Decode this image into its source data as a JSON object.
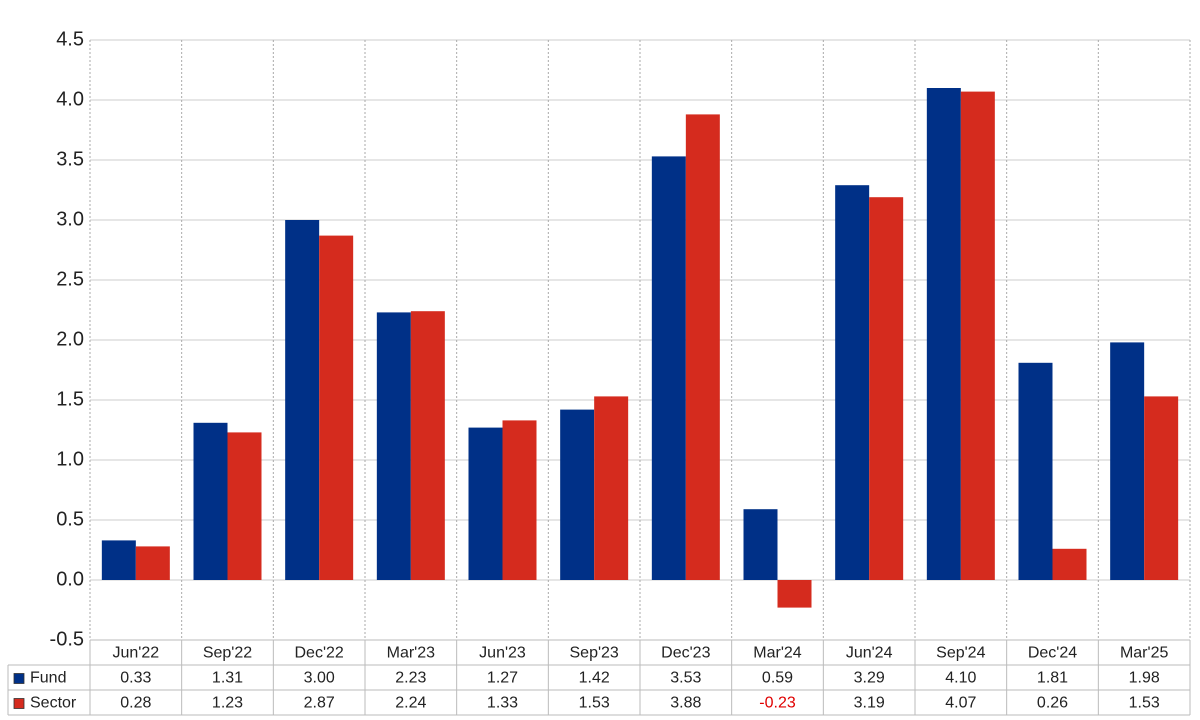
{
  "chart_data": {
    "type": "bar",
    "categories": [
      "Jun'22",
      "Sep'22",
      "Dec'22",
      "Mar'23",
      "Jun'23",
      "Sep'23",
      "Dec'23",
      "Mar'24",
      "Jun'24",
      "Sep'24",
      "Dec'24",
      "Mar'25"
    ],
    "series": [
      {
        "name": "Fund",
        "color": "#003087",
        "values": [
          0.33,
          1.31,
          3.0,
          2.23,
          1.27,
          1.42,
          3.53,
          0.59,
          3.29,
          4.1,
          1.81,
          1.98
        ],
        "value_labels": [
          "0.33",
          "1.31",
          "3.00",
          "2.23",
          "1.27",
          "1.42",
          "3.53",
          "0.59",
          "3.29",
          "4.10",
          "1.81",
          "1.98"
        ]
      },
      {
        "name": "Sector",
        "color": "#d52b1e",
        "values": [
          0.28,
          1.23,
          2.87,
          2.24,
          1.33,
          1.53,
          3.88,
          -0.23,
          3.19,
          4.07,
          0.26,
          1.53
        ],
        "value_labels": [
          "0.28",
          "1.23",
          "2.87",
          "2.24",
          "1.33",
          "1.53",
          "3.88",
          "-0.23",
          "3.19",
          "4.07",
          "0.26",
          "1.53"
        ]
      }
    ],
    "ylim": [
      -0.5,
      4.5
    ],
    "yticks": [
      -0.5,
      {
        "value": 0,
        "label": "0.0"
      },
      0.5,
      {
        "value": 1,
        "label": "1.0"
      },
      1.5,
      {
        "value": 2,
        "label": "2.0"
      },
      2.5,
      {
        "value": 3,
        "label": "3.0"
      },
      3.5,
      {
        "value": 4,
        "label": "4.0"
      },
      4.5
    ],
    "grid": true
  }
}
